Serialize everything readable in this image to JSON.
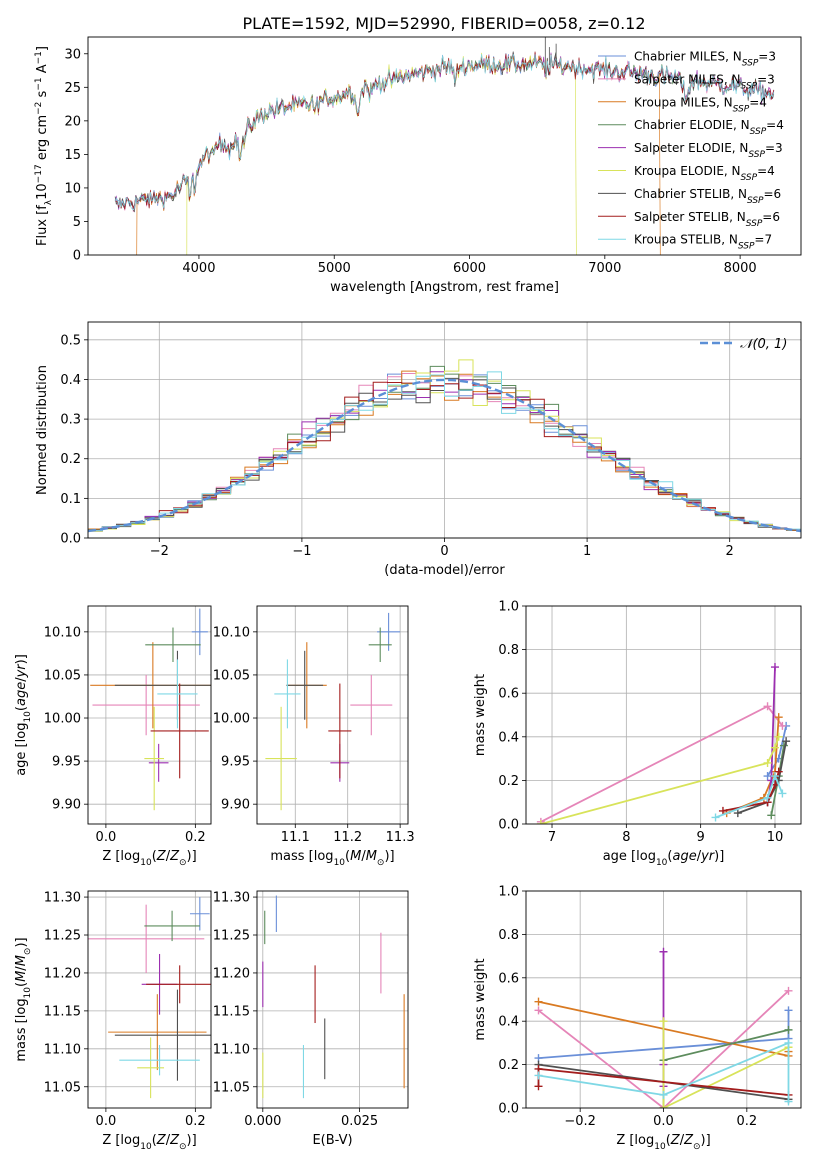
{
  "figure_title": "PLATE=1592, MJD=52990, FIBERID=0058, z=0.12",
  "colors": {
    "Chabrier MILES": "#6a8fd8",
    "Salpeter MILES": "#e585b8",
    "Kroupa MILES": "#d97a22",
    "Chabrier ELODIE": "#5d8c5d",
    "Salpeter ELODIE": "#9c2fb0",
    "Kroupa ELODIE": "#d8e35a",
    "Chabrier STELIB": "#505050",
    "Salpeter STELIB": "#a31d1d",
    "Kroupa STELIB": "#7fd8e5",
    "normal": "#5b8fd6"
  },
  "chart_data": [
    {
      "id": "spectrum",
      "type": "line",
      "title": "PLATE=1592, MJD=52990, FIBERID=0058, z=0.12",
      "xlabel": "wavelength [Angstrom, rest frame]",
      "ylabel": "Flux [f_λ 10^-17 erg cm^-2 s^-1 A^-1]",
      "xlim": [
        3180,
        8450
      ],
      "ylim": [
        0,
        32.5
      ],
      "xticks": [
        4000,
        5000,
        6000,
        7000,
        8000
      ],
      "yticks": [
        0,
        5,
        10,
        15,
        20,
        25,
        30
      ],
      "grid": false,
      "legend_position": "top-right",
      "continuum": [
        [
          3380,
          7.5
        ],
        [
          3600,
          8.2
        ],
        [
          3800,
          8.8
        ],
        [
          3950,
          12
        ],
        [
          4100,
          16
        ],
        [
          4300,
          18
        ],
        [
          4500,
          21.5
        ],
        [
          4800,
          22.5
        ],
        [
          5000,
          23.5
        ],
        [
          5200,
          25
        ],
        [
          5500,
          26.5
        ],
        [
          5800,
          28
        ],
        [
          6200,
          28.5
        ],
        [
          6500,
          28.5
        ],
        [
          6800,
          28
        ],
        [
          7200,
          27.2
        ],
        [
          7600,
          26.2
        ],
        [
          8000,
          25
        ],
        [
          8250,
          24
        ]
      ],
      "absorption_features": [
        [
          3934,
          -3.0,
          15
        ],
        [
          3969,
          -2.5,
          12
        ],
        [
          4102,
          -1.5,
          15
        ],
        [
          4227,
          -1.8,
          18
        ],
        [
          4304,
          -3.5,
          20
        ],
        [
          4340,
          -1.5,
          15
        ],
        [
          4861,
          -1.5,
          12
        ],
        [
          5175,
          -3.0,
          25
        ],
        [
          5270,
          -1.5,
          18
        ],
        [
          5895,
          -2.2,
          15
        ],
        [
          6563,
          -1.5,
          12
        ],
        [
          7600,
          -2.5,
          30
        ]
      ],
      "spikes": [
        [
          6560,
          32.5
        ],
        [
          6590,
          31
        ],
        [
          6640,
          31.5
        ],
        [
          7450,
          26
        ]
      ],
      "series": [
        {
          "name": "Chabrier MILES",
          "label": "Chabrier MILES, N_SSP=3"
        },
        {
          "name": "Salpeter MILES",
          "label": "Salpeter MILES, N_SSP=3"
        },
        {
          "name": "Kroupa MILES",
          "label": "Kroupa MILES, N_SSP=4"
        },
        {
          "name": "Chabrier ELODIE",
          "label": "Chabrier ELODIE, N_SSP=4"
        },
        {
          "name": "Salpeter ELODIE",
          "label": "Salpeter ELODIE, N_SSP=3"
        },
        {
          "name": "Kroupa ELODIE",
          "label": "Kroupa ELODIE, N_SSP=4"
        },
        {
          "name": "Chabrier STELIB",
          "label": "Chabrier STELIB, N_SSP=6"
        },
        {
          "name": "Salpeter STELIB",
          "label": "Salpeter STELIB, N_SSP=6"
        },
        {
          "name": "Kroupa STELIB",
          "label": "Kroupa STELIB, N_SSP=7"
        }
      ],
      "model_edges": [
        {
          "name": "Kroupa MILES",
          "drop": [
            3540,
            7410
          ]
        },
        {
          "name": "Kroupa ELODIE",
          "drop": [
            3910,
            6790
          ]
        }
      ]
    },
    {
      "id": "residual-histogram",
      "type": "step",
      "xlabel": "(data-model)/error",
      "ylabel": "Normed distribution",
      "xlim": [
        -2.5,
        2.5
      ],
      "ylim": [
        0,
        0.545
      ],
      "xticks": [
        -2,
        -1,
        0,
        1,
        2
      ],
      "yticks": [
        0.0,
        0.1,
        0.2,
        0.3,
        0.4,
        0.5
      ],
      "grid": true,
      "bin_width": 0.1,
      "legend_position": "top-right",
      "legend_label": "N(0,1)",
      "reference_curve": "normal pdf, mean 0, std 1"
    },
    {
      "id": "age-vs-Z",
      "type": "errorbar",
      "xlabel": "Z [log10(Z/Z⊙)]",
      "ylabel": "age  [log10(age/yr)]",
      "xlim": [
        -0.04,
        0.235
      ],
      "ylim": [
        9.877,
        10.13
      ],
      "xticks": [
        0.0,
        0.2
      ],
      "yticks": [
        9.9,
        9.95,
        10.0,
        10.05,
        10.1
      ],
      "grid": true,
      "points": [
        {
          "name": "Chabrier MILES",
          "x": 0.21,
          "xerr": 0.018,
          "y": 10.1,
          "yerr": 0.027
        },
        {
          "name": "Salpeter MILES",
          "x": 0.09,
          "xerr": 0.12,
          "y": 10.015,
          "yerr": 0.035
        },
        {
          "name": "Kroupa MILES",
          "x": 0.105,
          "xerr": 0.14,
          "y": 10.038,
          "yerr": 0.05
        },
        {
          "name": "Chabrier ELODIE",
          "x": 0.15,
          "xerr": 0.062,
          "y": 10.085,
          "yerr": 0.02
        },
        {
          "name": "Salpeter ELODIE",
          "x": 0.118,
          "xerr": 0.022,
          "y": 9.948,
          "yerr": 0.022
        },
        {
          "name": "Kroupa ELODIE",
          "x": 0.108,
          "xerr": 0.022,
          "y": 9.953,
          "yerr": 0.06
        },
        {
          "name": "Chabrier STELIB",
          "x": 0.16,
          "xerr": 0.14,
          "y": 10.038,
          "yerr": 0.04
        },
        {
          "name": "Salpeter STELIB",
          "x": 0.165,
          "xerr": 0.065,
          "y": 9.985,
          "yerr": 0.055
        },
        {
          "name": "Kroupa STELIB",
          "x": 0.16,
          "xerr": 0.045,
          "y": 10.028,
          "yerr": 0.04
        }
      ]
    },
    {
      "id": "age-vs-mass",
      "type": "errorbar",
      "xlabel": "mass [log10(M/M⊙)]",
      "ylabel": "",
      "xlim": [
        11.027,
        11.315
      ],
      "ylim": [
        9.877,
        10.13
      ],
      "xticks": [
        11.1,
        11.2,
        11.3
      ],
      "yticks": [
        9.9,
        9.95,
        10.0,
        10.05,
        10.1
      ],
      "grid": true,
      "points": [
        {
          "name": "Chabrier MILES",
          "x": 11.278,
          "xerr": 0.022,
          "y": 10.1,
          "yerr": 0.022
        },
        {
          "name": "Salpeter MILES",
          "x": 11.245,
          "xerr": 0.04,
          "y": 10.015,
          "yerr": 0.035
        },
        {
          "name": "Kroupa MILES",
          "x": 11.122,
          "xerr": 0.038,
          "y": 10.038,
          "yerr": 0.05
        },
        {
          "name": "Chabrier ELODIE",
          "x": 11.262,
          "xerr": 0.022,
          "y": 10.085,
          "yerr": 0.02
        },
        {
          "name": "Salpeter ELODIE",
          "x": 11.185,
          "xerr": 0.018,
          "y": 9.948,
          "yerr": 0.022
        },
        {
          "name": "Kroupa ELODIE",
          "x": 11.073,
          "xerr": 0.03,
          "y": 9.953,
          "yerr": 0.06
        },
        {
          "name": "Chabrier STELIB",
          "x": 11.118,
          "xerr": 0.035,
          "y": 10.038,
          "yerr": 0.04
        },
        {
          "name": "Salpeter STELIB",
          "x": 11.185,
          "xerr": 0.022,
          "y": 9.985,
          "yerr": 0.055
        },
        {
          "name": "Kroupa STELIB",
          "x": 11.085,
          "xerr": 0.025,
          "y": 10.028,
          "yerr": 0.04
        }
      ]
    },
    {
      "id": "mass-weight-vs-age",
      "type": "line",
      "xlabel": "age  [log10(age/yr)]",
      "ylabel": "mass weight",
      "xlim": [
        6.65,
        10.35
      ],
      "ylim": [
        0,
        1
      ],
      "xticks": [
        7,
        8,
        9,
        10
      ],
      "yticks": [
        0.0,
        0.2,
        0.4,
        0.6,
        0.8,
        1.0
      ],
      "grid": true,
      "series": [
        {
          "name": "Chabrier MILES",
          "x": [
            9.9,
            10.05,
            10.15
          ],
          "y": [
            0.22,
            0.3,
            0.45
          ]
        },
        {
          "name": "Salpeter MILES",
          "x": [
            6.85,
            9.9,
            10.1
          ],
          "y": [
            0.01,
            0.54,
            0.45
          ]
        },
        {
          "name": "Kroupa MILES",
          "x": [
            9.35,
            9.85,
            10.0,
            10.05
          ],
          "y": [
            0.05,
            0.12,
            0.24,
            0.49
          ]
        },
        {
          "name": "Chabrier ELODIE",
          "x": [
            9.95,
            10.05,
            10.12
          ],
          "y": [
            0.04,
            0.22,
            0.36
          ]
        },
        {
          "name": "Salpeter ELODIE",
          "x": [
            9.9,
            9.95,
            10.0
          ],
          "y": [
            0.1,
            0.2,
            0.72
          ]
        },
        {
          "name": "Kroupa ELODIE",
          "x": [
            6.85,
            9.9,
            10.0,
            10.05
          ],
          "y": [
            0.0,
            0.28,
            0.35,
            0.4
          ]
        },
        {
          "name": "Chabrier STELIB",
          "x": [
            9.5,
            9.9,
            10.05,
            10.15
          ],
          "y": [
            0.05,
            0.1,
            0.2,
            0.38
          ]
        },
        {
          "name": "Salpeter STELIB",
          "x": [
            9.3,
            9.9,
            10.0,
            10.05
          ],
          "y": [
            0.06,
            0.1,
            0.18,
            0.24
          ]
        },
        {
          "name": "Kroupa STELIB",
          "x": [
            9.2,
            9.9,
            10.0,
            10.1
          ],
          "y": [
            0.03,
            0.12,
            0.22,
            0.14
          ]
        }
      ]
    },
    {
      "id": "mass-vs-Z",
      "type": "errorbar",
      "xlabel": "Z [log10(Z/Z⊙)]",
      "ylabel": "mass [log10(M/M⊙)]",
      "xlim": [
        -0.04,
        0.235
      ],
      "ylim": [
        11.022,
        11.308
      ],
      "xticks": [
        0.0,
        0.2
      ],
      "yticks": [
        11.05,
        11.1,
        11.15,
        11.2,
        11.25,
        11.3
      ],
      "grid": true,
      "points": [
        {
          "name": "Chabrier MILES",
          "x": 0.21,
          "xerr": 0.022,
          "y": 11.278,
          "yerr": 0.022
        },
        {
          "name": "Salpeter MILES",
          "x": 0.09,
          "xerr": 0.13,
          "y": 11.245,
          "yerr": 0.045
        },
        {
          "name": "Kroupa MILES",
          "x": 0.115,
          "xerr": 0.11,
          "y": 11.122,
          "yerr": 0.05
        },
        {
          "name": "Chabrier ELODIE",
          "x": 0.148,
          "xerr": 0.062,
          "y": 11.262,
          "yerr": 0.02
        },
        {
          "name": "Salpeter ELODIE",
          "x": 0.12,
          "xerr": 0.04,
          "y": 11.185,
          "yerr": 0.04
        },
        {
          "name": "Kroupa ELODIE",
          "x": 0.1,
          "xerr": 0.03,
          "y": 11.075,
          "yerr": 0.04
        },
        {
          "name": "Chabrier STELIB",
          "x": 0.16,
          "xerr": 0.14,
          "y": 11.118,
          "yerr": 0.06
        },
        {
          "name": "Salpeter STELIB",
          "x": 0.165,
          "xerr": 0.075,
          "y": 11.185,
          "yerr": 0.025
        },
        {
          "name": "Kroupa STELIB",
          "x": 0.12,
          "xerr": 0.09,
          "y": 11.085,
          "yerr": 0.02
        }
      ]
    },
    {
      "id": "mass-vs-EBV",
      "type": "errorbar",
      "xlabel": "E(B-V)",
      "ylabel": "",
      "xlim": [
        -0.0015,
        0.0375
      ],
      "ylim": [
        11.022,
        11.308
      ],
      "xticks": [
        0.0,
        0.025
      ],
      "xtick_labels": [
        "0.000",
        "0.025"
      ],
      "yticks": [
        11.05,
        11.1,
        11.15,
        11.2,
        11.25,
        11.3
      ],
      "grid": true,
      "points": [
        {
          "name": "Chabrier MILES",
          "x": 0.0035,
          "xerr": 0,
          "y": 11.278,
          "yerr": 0.024
        },
        {
          "name": "Salpeter MILES",
          "x": 0.0305,
          "xerr": 0,
          "y": 11.213,
          "yerr": 0.04
        },
        {
          "name": "Kroupa MILES",
          "x": 0.0365,
          "xerr": 0,
          "y": 11.11,
          "yerr": 0.062
        },
        {
          "name": "Chabrier ELODIE",
          "x": 0.0005,
          "xerr": 0,
          "y": 11.26,
          "yerr": 0.022
        },
        {
          "name": "Salpeter ELODIE",
          "x": 0.0,
          "xerr": 0,
          "y": 11.185,
          "yerr": 0.03
        },
        {
          "name": "Kroupa ELODIE",
          "x": 0.0,
          "xerr": 0,
          "y": 11.065,
          "yerr": 0.03
        },
        {
          "name": "Chabrier STELIB",
          "x": 0.016,
          "xerr": 0,
          "y": 11.1,
          "yerr": 0.04
        },
        {
          "name": "Salpeter STELIB",
          "x": 0.0135,
          "xerr": 0,
          "y": 11.172,
          "yerr": 0.038
        },
        {
          "name": "Kroupa STELIB",
          "x": 0.0105,
          "xerr": 0,
          "y": 11.07,
          "yerr": 0.035
        }
      ]
    },
    {
      "id": "mass-weight-vs-Z",
      "type": "line",
      "xlabel": "Z [log10(Z/Z⊙)]",
      "ylabel": "mass weight",
      "xlim": [
        -0.33,
        0.33
      ],
      "ylim": [
        0,
        1
      ],
      "xticks": [
        -0.2,
        0.0,
        0.2
      ],
      "xtick_labels": [
        "−0.2",
        "0.0",
        "0.2"
      ],
      "yticks": [
        0.0,
        0.2,
        0.4,
        0.6,
        0.8,
        1.0
      ],
      "grid": true,
      "series": [
        {
          "name": "Chabrier MILES",
          "x": [
            -0.3,
            0.3,
            0.3
          ],
          "y": [
            0.23,
            0.32,
            0.45
          ]
        },
        {
          "name": "Salpeter MILES",
          "x": [
            -0.3,
            0.0,
            0.3
          ],
          "y": [
            0.45,
            0.0,
            0.54
          ]
        },
        {
          "name": "Kroupa MILES",
          "x": [
            -0.3,
            0.3,
            0.3
          ],
          "y": [
            0.49,
            0.24,
            0.26
          ]
        },
        {
          "name": "Chabrier ELODIE",
          "x": [
            0.0,
            0.0,
            0.3
          ],
          "y": [
            0.0,
            0.22,
            0.36
          ]
        },
        {
          "name": "Salpeter ELODIE",
          "x": [
            0.0,
            0.0,
            0.0
          ],
          "y": [
            0.1,
            0.2,
            0.72
          ]
        },
        {
          "name": "Kroupa ELODIE",
          "x": [
            0.0,
            0.0,
            0.3
          ],
          "y": [
            0.4,
            0.0,
            0.28
          ]
        },
        {
          "name": "Chabrier STELIB",
          "x": [
            -0.3,
            0.3
          ],
          "y": [
            0.2,
            0.04
          ]
        },
        {
          "name": "Salpeter STELIB",
          "x": [
            -0.3,
            -0.3,
            0.3
          ],
          "y": [
            0.1,
            0.18,
            0.06
          ]
        },
        {
          "name": "Kroupa STELIB",
          "x": [
            -0.3,
            0.0,
            0.3,
            0.3
          ],
          "y": [
            0.15,
            0.06,
            0.3,
            0.03
          ]
        }
      ]
    }
  ]
}
